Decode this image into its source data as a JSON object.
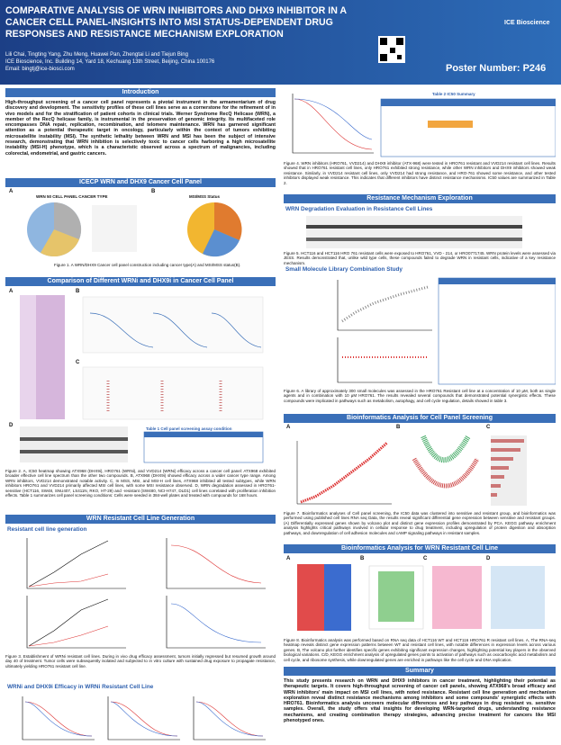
{
  "header": {
    "title": "COMPARATIVE ANALYSIS OF WRN INHIBITORS AND DHX9 INHIBITOR IN A CANCER CELL PANEL-INSIGHTS INTO MSI STATUS-DEPENDENT DRUG RESPONSES AND RESISTANCE MECHANISM EXPLORATION",
    "authors": "Lili Chai, Tingting Yang, Zhu Meng, Huawei Pan, Zhengtai Li and Tiejun Bing",
    "affiliation": "ICE Bioscience, Inc. Building 14, Yard 18, Kechuang 13th Street, Beijing, China 100176",
    "email": "Email: bingtj@ice-biosci.com",
    "logo": "ICE Bioscience",
    "poster_number": "Poster Number: P246"
  },
  "introduction": {
    "heading": "Introduction",
    "text": "High-throughput screening of a cancer cell panel represents a pivotal instrument in the armamentarium of drug discovery and development. The sensitivity profiles of these cell lines serve as a cornerstone for the refinement of in vivo models and for the stratification of patient cohorts in clinical trials. Werner Syndrome RecQ Helicase (WRN), a member of the RecQ helicase family, is instrumental in the preservation of genomic integrity. Its multifaceted role encompasses DNA repair, replication, recombination, and telomere maintenance. WRN has garnered significant attention as a potential therapeutic target in oncology, particularly within the context of tumors exhibiting microsatellite instability (MSI). The synthetic lethality between WRN and MSI has been the subject of intensive research, demonstrating that WRN inhibition is selectively toxic to cancer cells harboring a high microsatellite instability (MSI-H) phenotype, which is a characteristic observed across a spectrum of malignancies, including colorectal, endometrial, and gastric cancers."
  },
  "panel": {
    "heading": "ICECP WRN and DHX9 Cancer Cell Panel",
    "labels": [
      "A",
      "B"
    ],
    "fig_titles": [
      "WRN 50 CELL PANEL CANCER TYPE",
      "MSI/MSS Status"
    ],
    "caption": "Figure 1. A WRN/DHX9 Cancer cell panel construction including cancer type(A) and MSI/MSS status(B)."
  },
  "comparison": {
    "heading": "Comparison of Different WRNi and DHX9i in Cancer Cell Panel",
    "labels": [
      "A",
      "B",
      "C",
      "D"
    ],
    "table_title": "Table 1 Cell panel screening assay condition",
    "caption": "Figure 2. A, IC50 heatmap showing ATX968 (DHX9i), HRO761 (WRNi), and VVD214 (WRNi) efficacy across a cancer cell panel: ATX968 exhibited broader effective cell line spectrum than the other two compounds. B, ATX968 (DHX9i) showed efficacy across a wider cancer type range. Among WRN inhibitors, VVD214 demonstrated notable activity. C, In MSS, MSI, and MSI-H cell lines, ATX968 inhibited all tested subtypes, while WRN inhibitors HRO761 and VVD214 primarily affected MSI cell lines, with some MSI resistance observed. D, WRN degradation assessed in HRO761-sensitive (HCT116, SW48, SNU407, LS411N, RKO, HT-29) and -resistant (SW480, NCI-H747, DLD1) cell lines correlated with proliferation inhibition effects. Table 1 summarizes cell panel screening conditions: Cells were seeded in 384-well plates and treated with compounds for 168 hours."
  },
  "resistant_generation": {
    "heading": "WRN Resistant Cell Line Generation",
    "subheading": "Resistant cell line generation",
    "caption": "Figure 3. Establishment of WRNi resistant cell lines. During in vivo drug efficacy assessment, tumors initially regressed but resumed growth around day 40 of treatment. Tumor cells were subsequently isolated and subjected to in vitro culture with sustained drug exposure to propagate resistance, ultimately yielding HRO761 resistant cell line.",
    "efficacy_subheading": "WRNi and DHX9i Efficacy in WRNi Resistant Cell Line"
  },
  "efficacy": {
    "table_title": "Table 2 IC50 Summary",
    "caption": "Figure 4. WRN inhibitors (HRO761, VVD214) and DHX9 inhibitor (ATX-968) were tested in HRO761 resistant and VVD214 resistant cell lines. Results showed that in HRO761 resistant cell lines, only HRO761 exhibited strong resistance, while other WRN inhibitors and DHX9 inhibitors showed weak resistance. Similarly, in VVD214 resistant cell lines, only VVD214 had strong resistance, and HRO-761 showed some resistance, and other tested inhibitors displayed weak resistance. This indicates that different inhibitors have distinct resistance mechanisms. IC50 values are summarized in Table 2."
  },
  "mechanism": {
    "heading": "Resistance Mechanism Exploration",
    "degradation_subheading": "WRN Degradation Evaluation in Resistance Cell Lines",
    "degradation_caption": "Figure 5. HCT116 and HCT116 HRO 761 resistant cells were exposed to HRO761, VVD - 214, or HRO0771745. WRN protein levels were assessed via JESS. Results demonstrated that, unlike wild type cells, these compounds failed to degrade WRN in resistant cells, indicative of a key resistance mechanism.",
    "library_subheading": "Small Molecule Library Combination Study",
    "library_caption": "Figure 6. A library of approximately 300 small molecules was assessed in the HRO761 Resistant cell line at a concentration of 10 μM, both as single agents and in combination with 10 μM HRO761. The results revealed several compounds that demonstrated potential synergistic effects. These compounds were implicated in pathways such as metabolism, autophagy, and cell cycle regulation, details showed in table 3."
  },
  "bio_panel": {
    "heading": "Bioinformatics Analysis for Cell Panel Screening",
    "labels": [
      "A",
      "B",
      "C"
    ],
    "caption": "Figure 7. Bioinformatics analyses of Cell panel screening, the IC50 data was clustered into sensitive and resistant group, and bioinformatics was performed using published cell lines RNA seq Data, the results reveal significant differential gene expression between sensitive and resistant groups. (A) Differentially expressed genes shown by volcano plot and distinct gene expression profiles demonstrated by PCA. KEGG pathway enrichment analysis highlights critical pathways involved in cellular response to drug treatment, including upregulation of protein digestion and absorption pathways, and downregulation of cell adhesion molecules and cAMP signaling pathways in resistant samples."
  },
  "bio_resistant": {
    "heading": "Bioinformatics Analysis for WRN Resistant Cell Line",
    "labels": [
      "A",
      "B",
      "C",
      "D"
    ],
    "caption": "Figure 8. Bioinformatics analysis was performed based on RNA seq data of HCT116 WT and HCT116 HRO761 R resistant cell lines. A, The RNA-seq heatmap reveals distinct gene expression patterns between WT and resistant cell lines, with notable differences in expression levels across various genes. B, The volcano plot further identifies specific genes exhibiting significant expression changes, highlighting potential key players in the observed biological variations. C/D, KEGG enrichment analysis of upregulated genes points to activation of pathways such as oxocarboxylic acid metabolism and cell cycle, and ribosome synthesis, while downregulated genes are enriched in pathways like the cell cycle and DNA replication."
  },
  "summary": {
    "heading": "Summary",
    "text": "This study presents research on WRN and DHX9 inhibitors in cancer treatment, highlighting their potential as therapeutic targets. It covers high-throughput screening of cancer cell panels, showing ATX968's broad efficacy and WRN inhibitors' main impact on MSI cell lines, with noted resistance. Resistant cell line generation and mechanism exploration reveal distinct resistance mechanisms among inhibitors and some compounds' synergistic effects with HRO761. Bioinformatics analysis uncovers molecular differences and key pathways in drug resistant vs. sensitive samples. Overall, the study offers vital insights for developing WRN-targeted drugs, understanding resistance mechanisms, and creating combination therapy strategies, advancing precise treatment for cancers like MSI phenotyped ones."
  }
}
